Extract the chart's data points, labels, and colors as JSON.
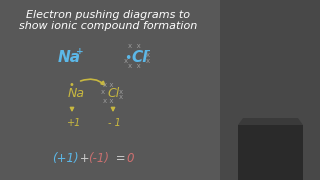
{
  "bg_color": "#585858",
  "right_panel_color": "#505050",
  "title_line1": "Electron pushing diagrams to",
  "title_line2": "show ionic compound formation",
  "title_color": "#ffffff",
  "na_ion_color": "#5cb8e8",
  "cl_ion_color": "#5cb8e8",
  "cl_dot_color": "#5cb8e8",
  "cl_x_color": "#9a9a9a",
  "na_diagram_color": "#c8b840",
  "cl_diagram_color": "#c8b840",
  "arrow_color": "#c8b840",
  "equation_color": "#cccccc",
  "eq_plus1_color": "#5cb8e8",
  "eq_minus1_color": "#c87070",
  "eq_zero_color": "#d07070"
}
